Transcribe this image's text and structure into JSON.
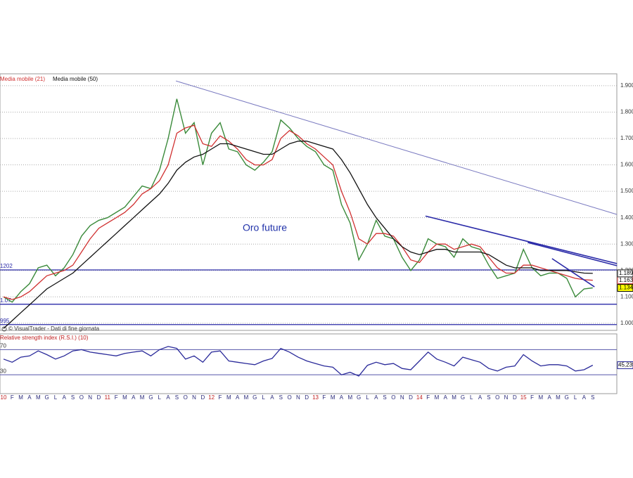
{
  "chart_data": [
    {
      "type": "line",
      "title": "Oro future",
      "note": "© VisualTrader - Dati di fine giornata",
      "categories": [
        "10",
        "F",
        "M",
        "A",
        "M",
        "G",
        "L",
        "A",
        "S",
        "O",
        "N",
        "D",
        "11",
        "F",
        "M",
        "A",
        "M",
        "G",
        "L",
        "A",
        "S",
        "O",
        "N",
        "D",
        "12",
        "F",
        "M",
        "A",
        "M",
        "G",
        "L",
        "A",
        "S",
        "O",
        "N",
        "D",
        "13",
        "F",
        "M",
        "A",
        "M",
        "G",
        "L",
        "A",
        "S",
        "O",
        "N",
        "D",
        "14",
        "F",
        "M",
        "A",
        "M",
        "G",
        "L",
        "A",
        "S",
        "O",
        "N",
        "D",
        "15",
        "F",
        "M",
        "A",
        "M",
        "G",
        "L",
        "A",
        "S"
      ],
      "values": [
        1.1,
        1.08,
        1.12,
        1.15,
        1.21,
        1.22,
        1.18,
        1.21,
        1.26,
        1.33,
        1.37,
        1.39,
        1.4,
        1.42,
        1.44,
        1.48,
        1.52,
        1.51,
        1.58,
        1.7,
        1.85,
        1.72,
        1.76,
        1.6,
        1.72,
        1.76,
        1.66,
        1.65,
        1.6,
        1.58,
        1.61,
        1.65,
        1.77,
        1.74,
        1.7,
        1.67,
        1.65,
        1.6,
        1.58,
        1.45,
        1.38,
        1.24,
        1.3,
        1.39,
        1.33,
        1.32,
        1.25,
        1.2,
        1.24,
        1.32,
        1.3,
        1.29,
        1.25,
        1.32,
        1.29,
        1.28,
        1.22,
        1.17,
        1.18,
        1.19,
        1.28,
        1.21,
        1.18,
        1.19,
        1.19,
        1.17,
        1.1,
        1.13,
        1.134
      ],
      "color": "#3a8a3a",
      "end_label": "1.134",
      "series": [
        {
          "name": "Media mobile (21)",
          "color": "#d03030",
          "end_label": "1.163",
          "values": [
            1.1,
            1.09,
            1.1,
            1.12,
            1.15,
            1.18,
            1.19,
            1.2,
            1.22,
            1.27,
            1.32,
            1.36,
            1.38,
            1.4,
            1.42,
            1.45,
            1.49,
            1.51,
            1.54,
            1.6,
            1.72,
            1.74,
            1.75,
            1.68,
            1.67,
            1.71,
            1.69,
            1.66,
            1.62,
            1.6,
            1.6,
            1.62,
            1.7,
            1.73,
            1.71,
            1.68,
            1.66,
            1.63,
            1.6,
            1.5,
            1.42,
            1.32,
            1.3,
            1.34,
            1.34,
            1.33,
            1.29,
            1.24,
            1.23,
            1.27,
            1.3,
            1.3,
            1.28,
            1.29,
            1.3,
            1.29,
            1.25,
            1.21,
            1.19,
            1.19,
            1.22,
            1.22,
            1.21,
            1.2,
            1.19,
            1.18,
            1.17,
            1.165,
            1.163
          ]
        },
        {
          "name": "Media mobile (50)",
          "color": "#111111",
          "end_label": "1.189",
          "values": [
            0.98,
            1.01,
            1.04,
            1.07,
            1.1,
            1.13,
            1.15,
            1.17,
            1.19,
            1.22,
            1.25,
            1.28,
            1.31,
            1.34,
            1.37,
            1.4,
            1.43,
            1.46,
            1.49,
            1.53,
            1.58,
            1.61,
            1.63,
            1.64,
            1.66,
            1.68,
            1.68,
            1.67,
            1.66,
            1.65,
            1.64,
            1.64,
            1.66,
            1.68,
            1.69,
            1.69,
            1.68,
            1.67,
            1.66,
            1.62,
            1.57,
            1.51,
            1.45,
            1.4,
            1.36,
            1.32,
            1.29,
            1.27,
            1.26,
            1.27,
            1.28,
            1.28,
            1.27,
            1.27,
            1.27,
            1.27,
            1.26,
            1.24,
            1.22,
            1.21,
            1.21,
            1.21,
            1.2,
            1.2,
            1.2,
            1.2,
            1.195,
            1.19,
            1.189
          ]
        }
      ],
      "ylim": [
        0.973,
        1.945
      ],
      "yticks": [
        {
          "value": 1.0,
          "label": "1.000"
        },
        {
          "value": 1.1,
          "label": "1.100"
        },
        {
          "value": 1.2,
          "label": "1.200"
        },
        {
          "value": 1.3,
          "label": "1.300"
        },
        {
          "value": 1.4,
          "label": "1.400"
        },
        {
          "value": 1.5,
          "label": "1.500"
        },
        {
          "value": 1.6,
          "label": "1.600"
        },
        {
          "value": 1.7,
          "label": "1.700"
        },
        {
          "value": 1.8,
          "label": "1.800"
        },
        {
          "value": 1.9,
          "label": "1.900"
        }
      ],
      "grid": true,
      "levels": [
        {
          "value": 1.202,
          "label": "1202"
        },
        {
          "value": 1.072,
          "label": "1.07"
        },
        {
          "value": 0.995,
          "label": "995"
        }
      ],
      "level_color": "#2a2aa8",
      "trendlines": [
        {
          "color": "#7a7ac0",
          "x": [
            19.9,
            70.8
          ],
          "y": [
            1.918,
            1.412
          ]
        },
        {
          "color": "#2a2aa8",
          "x": [
            48.7,
            70.8
          ],
          "y": [
            1.406,
            1.226
          ]
        },
        {
          "color": "#2a2aa8",
          "x": [
            60.5,
            70.8
          ],
          "y": [
            1.306,
            1.218
          ]
        },
        {
          "color": "#2a2aa8",
          "x": [
            63.3,
            68.2
          ],
          "y": [
            1.245,
            1.138
          ]
        }
      ]
    },
    {
      "type": "line",
      "title": "Relative strength index (R.S.I.) (10)",
      "values": [
        55,
        50,
        58,
        60,
        68,
        62,
        55,
        60,
        68,
        70,
        66,
        64,
        62,
        60,
        64,
        66,
        68,
        60,
        70,
        75,
        72,
        55,
        60,
        50,
        66,
        68,
        52,
        50,
        48,
        46,
        52,
        56,
        72,
        66,
        58,
        52,
        48,
        44,
        42,
        30,
        34,
        28,
        45,
        50,
        46,
        48,
        40,
        38,
        52,
        66,
        55,
        50,
        44,
        58,
        54,
        50,
        40,
        36,
        42,
        44,
        62,
        52,
        44,
        46,
        46,
        44,
        36,
        38,
        45.239
      ],
      "value_labels_last": "45,239",
      "color": "#2a2a9a",
      "ylim": [
        0,
        95
      ],
      "levels": [
        {
          "value": 70,
          "label": "70"
        },
        {
          "value": 30,
          "label": "30"
        }
      ]
    }
  ]
}
